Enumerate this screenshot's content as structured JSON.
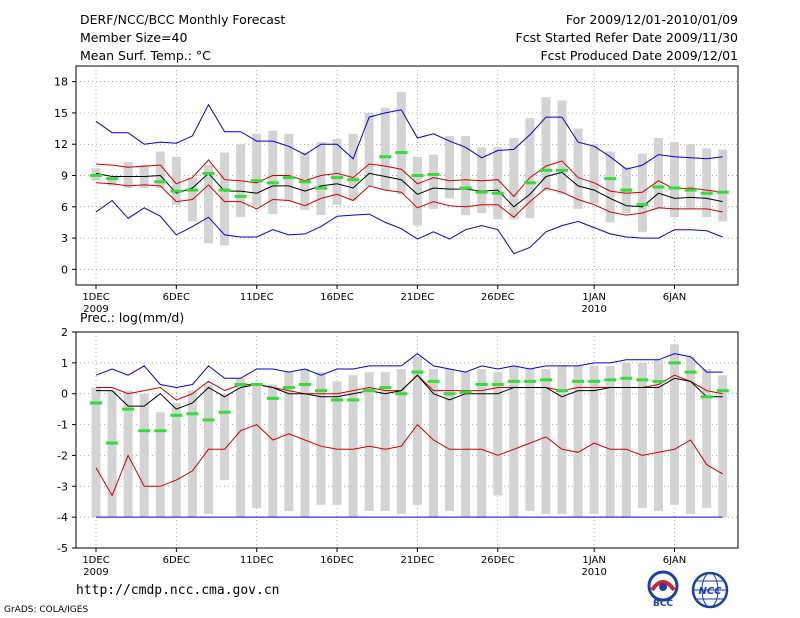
{
  "header": {
    "title": "DERF/NCC/BCC Monthly Forecast",
    "member_size": "Member Size=40",
    "variable_top": "Mean Surf. Temp.: °C",
    "period": "For 2009/12/01-2010/01/09",
    "started": "Fcst Started Refer Date 2009/11/30",
    "produced": "Fcst Produced Date 2009/12/01"
  },
  "footer": {
    "url": "http://cmdp.ncc.cma.gov.cn",
    "credit": "GrADS: COLA/IGES",
    "logo_bcc": "BCC",
    "logo_ncc": "NCC"
  },
  "colors": {
    "bar": "#d3d3d3",
    "obs": "#33dd33",
    "mean": "#000000",
    "pct": "#cc0000",
    "ext": "#0000cc",
    "grid": "#888888"
  },
  "chart_data": [
    {
      "type": "box-series",
      "title": "Mean Surf. Temp.: °C",
      "ylabel": "°C",
      "ylim": [
        -1.5,
        19.5
      ],
      "yticks": [
        0,
        3,
        6,
        9,
        12,
        15,
        18
      ],
      "xtick_days": [
        1,
        6,
        11,
        16,
        21,
        26,
        32,
        37
      ],
      "xtick_labels": [
        "1DEC",
        "6DEC",
        "11DEC",
        "16DEC",
        "21DEC",
        "26DEC",
        "1JAN",
        "6JAN"
      ],
      "xtick_years": [
        {
          "day": 1,
          "label": "2009"
        },
        {
          "day": 32,
          "label": "2010"
        }
      ],
      "days": [
        1,
        2,
        3,
        4,
        5,
        6,
        7,
        8,
        9,
        10,
        11,
        12,
        13,
        14,
        15,
        16,
        17,
        18,
        19,
        20,
        21,
        22,
        23,
        24,
        25,
        26,
        27,
        28,
        29,
        30,
        31,
        32,
        33,
        34,
        35,
        36,
        37,
        38,
        39,
        40
      ],
      "box_low": [
        8.5,
        8.0,
        7.8,
        7.8,
        7.8,
        6.2,
        4.6,
        2.5,
        2.3,
        5.0,
        6.0,
        5.3,
        6.5,
        5.7,
        5.2,
        6.2,
        6.6,
        8.0,
        7.6,
        7.2,
        4.2,
        5.8,
        6.8,
        5.2,
        5.4,
        4.8,
        4.8,
        4.9,
        7.5,
        7.2,
        5.8,
        6.3,
        4.5,
        5.4,
        3.6,
        5.8,
        5.0,
        5.8,
        5.0,
        4.6
      ],
      "box_high": [
        9.7,
        8.6,
        10.3,
        10.0,
        11.3,
        10.8,
        8.8,
        10.0,
        11.2,
        12.0,
        13.0,
        13.3,
        13.0,
        11.2,
        12.2,
        12.5,
        13.0,
        15.0,
        15.5,
        17.0,
        10.8,
        11.0,
        12.8,
        12.8,
        11.7,
        11.7,
        12.6,
        14.5,
        16.5,
        16.2,
        13.5,
        12.0,
        11.3,
        9.8,
        11.1,
        12.6,
        12.2,
        12.0,
        11.6,
        11.5
      ],
      "observed": [
        9.0,
        8.7,
        null,
        null,
        8.4,
        7.5,
        7.6,
        9.2,
        7.6,
        7.0,
        8.5,
        8.3,
        8.8,
        8.4,
        7.8,
        8.8,
        8.6,
        null,
        10.8,
        11.2,
        9.0,
        9.1,
        null,
        7.8,
        7.4,
        7.3,
        null,
        8.3,
        9.5,
        9.5,
        null,
        null,
        8.7,
        7.6,
        6.2,
        7.9,
        7.8,
        7.6,
        7.3,
        7.4
      ],
      "mean": [
        9.2,
        8.9,
        8.9,
        8.9,
        9.0,
        7.3,
        7.8,
        9.2,
        7.5,
        7.5,
        7.3,
        8.0,
        8.0,
        7.5,
        8.0,
        8.2,
        7.8,
        9.2,
        8.9,
        8.6,
        7.2,
        7.8,
        7.7,
        7.7,
        7.5,
        7.6,
        6.0,
        7.2,
        8.9,
        9.3,
        8.0,
        7.6,
        6.8,
        6.1,
        6.0,
        7.3,
        6.8,
        6.9,
        6.8,
        6.5
      ],
      "p_high": [
        10.1,
        10.0,
        9.8,
        9.9,
        10.0,
        8.2,
        8.8,
        10.5,
        8.6,
        8.5,
        8.3,
        9.0,
        9.0,
        8.5,
        9.0,
        9.2,
        8.8,
        10.1,
        9.9,
        9.6,
        8.2,
        8.8,
        8.5,
        8.6,
        8.5,
        8.6,
        7.0,
        8.8,
        9.9,
        10.4,
        8.8,
        8.3,
        7.5,
        7.3,
        7.4,
        8.5,
        7.7,
        7.8,
        7.6,
        7.4
      ],
      "p_low": [
        8.3,
        8.2,
        8.0,
        8.1,
        8.0,
        6.5,
        6.7,
        8.1,
        6.5,
        6.5,
        5.8,
        6.7,
        6.6,
        6.1,
        6.8,
        7.2,
        6.6,
        8.0,
        7.6,
        7.4,
        5.9,
        6.5,
        6.1,
        6.0,
        6.2,
        6.2,
        5.0,
        6.5,
        7.8,
        7.4,
        6.7,
        6.2,
        5.5,
        5.2,
        5.4,
        5.9,
        5.8,
        5.8,
        5.8,
        5.5
      ],
      "max": [
        14.2,
        13.1,
        13.1,
        12.0,
        12.2,
        12.1,
        12.8,
        15.8,
        13.2,
        13.2,
        12.3,
        12.3,
        11.8,
        11.0,
        12.0,
        12.0,
        10.6,
        14.6,
        15.0,
        15.3,
        12.6,
        13.0,
        12.3,
        11.7,
        10.7,
        11.4,
        11.5,
        12.9,
        14.6,
        14.6,
        12.2,
        11.8,
        10.8,
        9.6,
        10.0,
        11.0,
        10.8,
        10.7,
        10.6,
        10.8
      ],
      "min": [
        5.5,
        6.6,
        4.9,
        5.9,
        5.1,
        3.3,
        4.1,
        5.0,
        3.3,
        3.1,
        3.1,
        3.8,
        3.3,
        3.4,
        4.1,
        5.1,
        5.2,
        5.3,
        4.5,
        3.9,
        2.9,
        3.6,
        2.9,
        3.8,
        4.2,
        3.8,
        1.5,
        2.1,
        3.6,
        4.2,
        4.6,
        4.0,
        3.4,
        3.1,
        3.0,
        3.0,
        3.8,
        3.8,
        3.7,
        3.1
      ]
    },
    {
      "type": "box-series",
      "title": "Prec.: log(mm/d)",
      "ylabel": "log(mm/d)",
      "ylim": [
        -5,
        2
      ],
      "yticks": [
        -5,
        -4,
        -3,
        -2,
        -1,
        0,
        1,
        2
      ],
      "xtick_days": [
        1,
        6,
        11,
        16,
        21,
        26,
        32,
        37
      ],
      "xtick_labels": [
        "1DEC",
        "6DEC",
        "11DEC",
        "16DEC",
        "21DEC",
        "26DEC",
        "1JAN",
        "6JAN"
      ],
      "xtick_years": [
        {
          "day": 1,
          "label": "2009"
        },
        {
          "day": 32,
          "label": "2010"
        }
      ],
      "days": [
        1,
        2,
        3,
        4,
        5,
        6,
        7,
        8,
        9,
        10,
        11,
        12,
        13,
        14,
        15,
        16,
        17,
        18,
        19,
        20,
        21,
        22,
        23,
        24,
        25,
        26,
        27,
        28,
        29,
        30,
        31,
        32,
        33,
        34,
        35,
        36,
        37,
        38,
        39,
        40
      ],
      "box_low": [
        -4,
        -4,
        -4,
        -4,
        -4,
        -4,
        -4,
        -3.9,
        -2.8,
        -4,
        -3.7,
        -4,
        -3.8,
        -4,
        -3.6,
        -3.6,
        -4,
        -3.8,
        -3.8,
        -3.9,
        -3.6,
        -4,
        -3.8,
        -4,
        -4,
        -3.3,
        -4,
        -3.8,
        -3.9,
        -3.9,
        -4,
        -3.9,
        -4,
        -4,
        -3.7,
        -3.8,
        -3.6,
        -3.9,
        -3.7,
        -4
      ],
      "box_high": [
        0.2,
        0.1,
        0.1,
        0,
        -0.6,
        -0.3,
        0.1,
        0.3,
        0,
        0.5,
        0.3,
        0.3,
        0.7,
        0.8,
        0.7,
        0.4,
        0.6,
        0.7,
        0.7,
        0.8,
        1.2,
        0.8,
        0.8,
        0.7,
        0.8,
        0.7,
        0.9,
        0.8,
        0.8,
        0.9,
        0.9,
        0.9,
        0.9,
        1,
        1,
        1.1,
        1.6,
        1.2,
        0.8,
        0.6
      ],
      "observed": [
        -0.3,
        -1.6,
        -0.5,
        -1.2,
        -1.2,
        -0.7,
        -0.65,
        -0.85,
        -0.6,
        0.3,
        0.3,
        -0.15,
        0.2,
        0.3,
        0.1,
        -0.2,
        -0.2,
        0.1,
        0.2,
        0,
        0.7,
        0.4,
        0,
        0.05,
        0.3,
        0.3,
        0.4,
        0.4,
        0.45,
        0.1,
        0.4,
        0.4,
        0.45,
        0.5,
        0.45,
        0.4,
        1,
        0.7,
        -0.1,
        0.1
      ],
      "mean": [
        0.1,
        0.1,
        -0.4,
        -0.4,
        0,
        -0.5,
        -0.3,
        0.2,
        -0.1,
        0.2,
        0.3,
        0.2,
        0,
        0,
        -0.1,
        -0.1,
        0,
        0.1,
        0,
        0.1,
        0.6,
        0,
        -0.2,
        0,
        0,
        0,
        0.2,
        0.2,
        0.2,
        -0.1,
        0.1,
        0.1,
        0.2,
        0.2,
        0.2,
        0.2,
        0.5,
        0.4,
        -0.1,
        -0.1
      ],
      "p_high": [
        0.2,
        0.2,
        0,
        0.1,
        0.2,
        -0.2,
        0,
        0.4,
        0.1,
        0.3,
        0.3,
        0.2,
        0.1,
        0,
        0,
        0,
        0.1,
        0.2,
        0.1,
        0.1,
        0.6,
        0.1,
        0.1,
        0.1,
        0.1,
        0.2,
        0.2,
        0.2,
        0.2,
        0.1,
        0.2,
        0.2,
        0.2,
        0.2,
        0.2,
        0.3,
        0.6,
        0.4,
        0.1,
        0
      ],
      "p_low": [
        -2.4,
        -3.3,
        -2,
        -3,
        -3,
        -2.8,
        -2.5,
        -1.8,
        -1.8,
        -1.2,
        -1,
        -1.5,
        -1.3,
        -1.5,
        -1.7,
        -1.8,
        -1.8,
        -1.7,
        -1.8,
        -1.7,
        -1,
        -1.5,
        -1.8,
        -1.8,
        -1.8,
        -2,
        -1.8,
        -1.6,
        -1.4,
        -1.8,
        -1.9,
        -1.6,
        -1.8,
        -1.8,
        -2,
        -1.9,
        -1.8,
        -1.5,
        -2.3,
        -2.6
      ],
      "max": [
        0.6,
        0.8,
        0.6,
        0.9,
        0.3,
        0.2,
        0.3,
        0.9,
        0.5,
        0.5,
        0.8,
        0.8,
        0.7,
        0.8,
        0.6,
        0.8,
        0.8,
        0.9,
        0.9,
        0.9,
        1.3,
        0.9,
        0.8,
        0.7,
        0.9,
        0.8,
        0.9,
        0.8,
        0.9,
        0.9,
        0.9,
        1,
        1,
        1.1,
        1.1,
        1.1,
        1.3,
        1.2,
        0.7,
        0.7
      ],
      "min": [
        -4,
        -4,
        -4,
        -4,
        -4,
        -4,
        -4,
        -4,
        -4,
        -4,
        -4,
        -4,
        -4,
        -4,
        -4,
        -4,
        -4,
        -4,
        -4,
        -4,
        -4,
        -4,
        -4,
        -4,
        -4,
        -4,
        -4,
        -4,
        -4,
        -4,
        -4,
        -4,
        -4,
        -4,
        -4,
        -4,
        -4,
        -4,
        -4,
        -4
      ]
    }
  ]
}
